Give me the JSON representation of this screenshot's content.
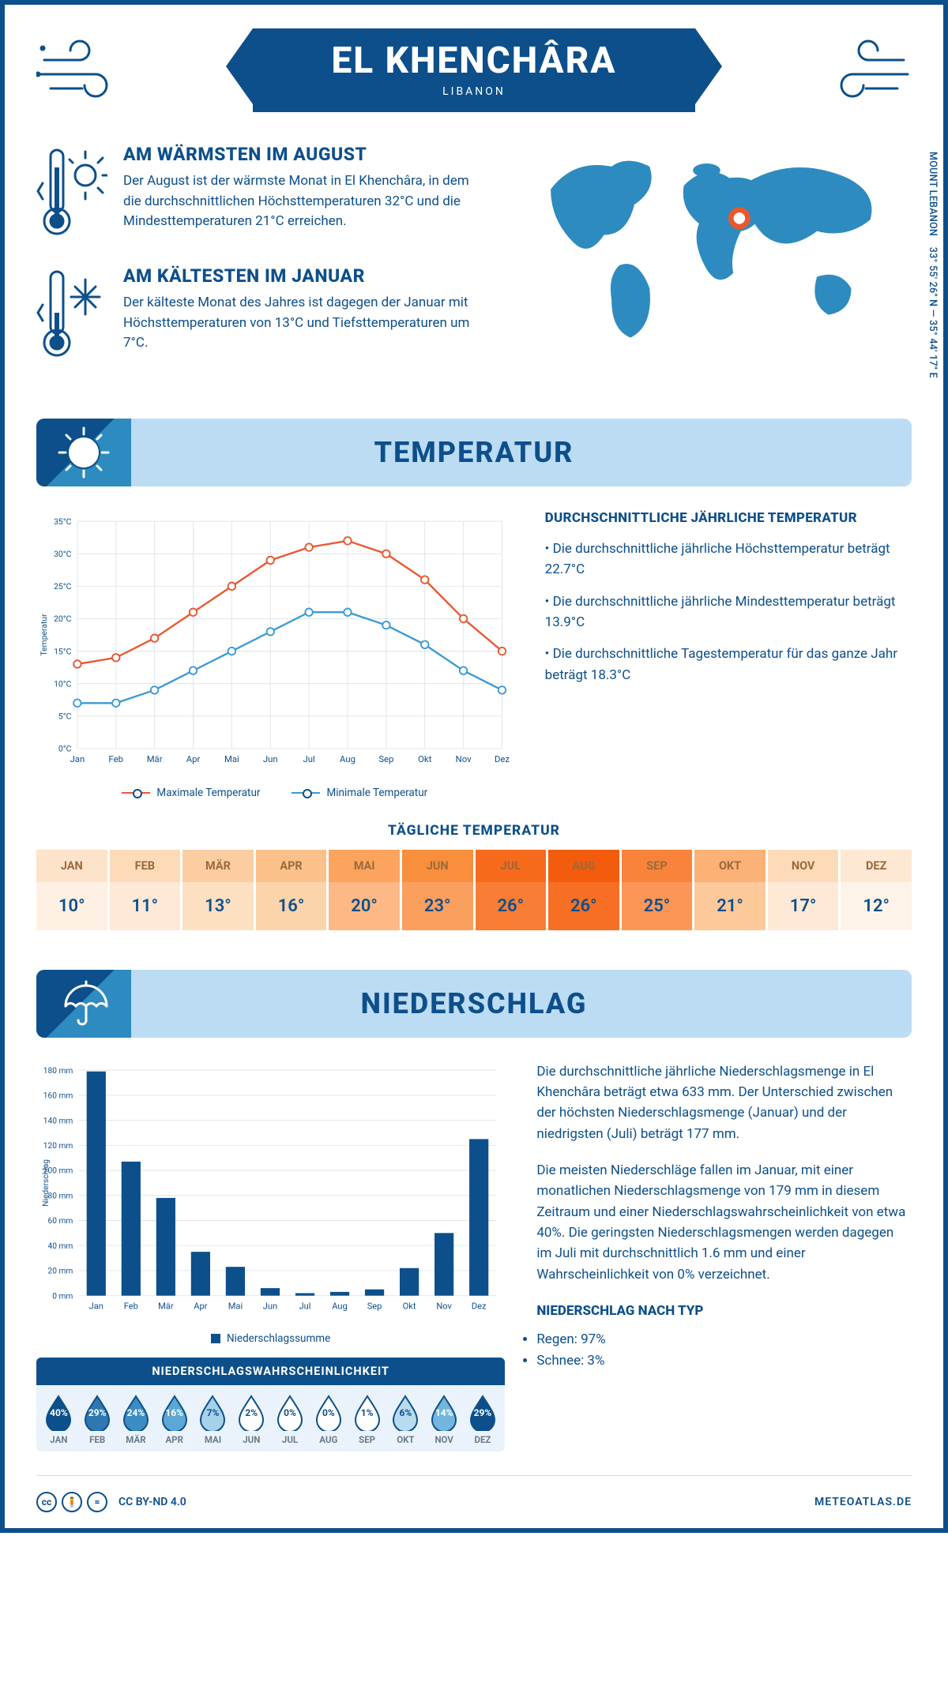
{
  "header": {
    "city": "EL KHENCHÂRA",
    "country": "LIBANON",
    "coords": "33° 55' 26'' N — 35° 44' 17'' E",
    "region": "MOUNT LEBANON"
  },
  "intro": {
    "warm": {
      "title": "AM WÄRMSTEN IM AUGUST",
      "text": "Der August ist der wärmste Monat in El Khenchâra, in dem die durchschnittlichen Höchsttemperaturen 32°C und die Mindesttemperaturen 21°C erreichen."
    },
    "cold": {
      "title": "AM KÄLTESTEN IM JANUAR",
      "text": "Der kälteste Monat des Jahres ist dagegen der Januar mit Höchsttemperaturen von 13°C und Tiefsttemperaturen um 7°C."
    }
  },
  "sections": {
    "temp": "TEMPERATUR",
    "precip": "NIEDERSCHLAG"
  },
  "temp_chart": {
    "type": "line",
    "months": [
      "Jan",
      "Feb",
      "Mär",
      "Apr",
      "Mai",
      "Jun",
      "Jul",
      "Aug",
      "Sep",
      "Okt",
      "Nov",
      "Dez"
    ],
    "max": [
      13,
      14,
      17,
      21,
      25,
      29,
      31,
      32,
      30,
      26,
      20,
      15
    ],
    "min": [
      7,
      7,
      9,
      12,
      15,
      18,
      21,
      21,
      19,
      16,
      12,
      9
    ],
    "ylim": [
      0,
      35
    ],
    "ytick_step": 5,
    "yunit": "°C",
    "ylabel": "Temperatur",
    "colors": {
      "max": "#e8582f",
      "min": "#3b9bd4",
      "grid": "#dfe5ea",
      "text": "#0d4f8b"
    },
    "line_width": 2.5,
    "marker": "circle",
    "marker_size": 5,
    "legend": {
      "max": "Maximale Temperatur",
      "min": "Minimale Temperatur"
    }
  },
  "temp_info": {
    "title": "DURCHSCHNITTLICHE JÄHRLICHE TEMPERATUR",
    "bullets": [
      "Die durchschnittliche jährliche Höchsttemperatur beträgt 22.7°C",
      "Die durchschnittliche jährliche Mindesttemperatur beträgt 13.9°C",
      "Die durchschnittliche Tagestemperatur für das ganze Jahr beträgt 18.3°C"
    ]
  },
  "daily_temp": {
    "title": "TÄGLICHE TEMPERATUR",
    "months": [
      "JAN",
      "FEB",
      "MÄR",
      "APR",
      "MAI",
      "JUN",
      "JUL",
      "AUG",
      "SEP",
      "OKT",
      "NOV",
      "DEZ"
    ],
    "values": [
      "10°",
      "11°",
      "13°",
      "16°",
      "20°",
      "23°",
      "26°",
      "26°",
      "25°",
      "21°",
      "17°",
      "12°"
    ],
    "header_bg": [
      "#fde3c9",
      "#fddbb9",
      "#fccda1",
      "#fcc08b",
      "#fca35e",
      "#f98e3c",
      "#f66a1b",
      "#f25c0c",
      "#f9833a",
      "#fcb177",
      "#fddbb9",
      "#fde8d3"
    ],
    "value_bg": [
      "#fef0e2",
      "#fde9d5",
      "#fde0c2",
      "#fcd4ab",
      "#fcb985",
      "#fb9f5e",
      "#f97d35",
      "#f66f24",
      "#fb9656",
      "#fdc99b",
      "#fde9d5",
      "#fef3e8"
    ],
    "header_text": "#9a6a3a"
  },
  "precip_chart": {
    "type": "bar",
    "months": [
      "Jan",
      "Feb",
      "Mär",
      "Apr",
      "Mai",
      "Jun",
      "Jul",
      "Aug",
      "Sep",
      "Okt",
      "Nov",
      "Dez"
    ],
    "values": [
      179,
      107,
      78,
      35,
      23,
      6,
      2,
      3,
      5,
      22,
      50,
      125
    ],
    "ylim": [
      0,
      180
    ],
    "ytick_step": 20,
    "yunit": " mm",
    "ylabel": "Niederschlag",
    "bar_color": "#0d4f8b",
    "grid_color": "#dfe5ea",
    "bar_width": 0.55,
    "legend": "Niederschlagssumme"
  },
  "precip_text": {
    "p1": "Die durchschnittliche jährliche Niederschlagsmenge in El Khenchâra beträgt etwa 633 mm. Der Unterschied zwischen der höchsten Niederschlagsmenge (Januar) und der niedrigsten (Juli) beträgt 177 mm.",
    "p2": "Die meisten Niederschläge fallen im Januar, mit einer monatlichen Niederschlagsmenge von 179 mm in diesem Zeitraum und einer Niederschlagswahrscheinlichkeit von etwa 40%. Die geringsten Niederschlagsmengen werden dagegen im Juli mit durchschnittlich 1.6 mm und einer Wahrscheinlichkeit von 0% verzeichnet.",
    "type_title": "NIEDERSCHLAG NACH TYP",
    "type_items": [
      "Regen: 97%",
      "Schnee: 3%"
    ]
  },
  "prob": {
    "title": "NIEDERSCHLAGSWAHRSCHEINLICHKEIT",
    "months": [
      "JAN",
      "FEB",
      "MÄR",
      "APR",
      "MAI",
      "JUN",
      "JUL",
      "AUG",
      "SEP",
      "OKT",
      "NOV",
      "DEZ"
    ],
    "values": [
      "40%",
      "29%",
      "24%",
      "16%",
      "7%",
      "2%",
      "0%",
      "0%",
      "1%",
      "6%",
      "14%",
      "29%"
    ],
    "fill": [
      "#0d4f8b",
      "#2e77b0",
      "#3b8cc4",
      "#5ba7d6",
      "#a6d1ea",
      "#fff",
      "#fff",
      "#fff",
      "#fff",
      "#b8dbef",
      "#72b6de",
      "#0d4f8b"
    ],
    "text": [
      "#fff",
      "#fff",
      "#fff",
      "#fff",
      "#0d4f8b",
      "#0d4f8b",
      "#0d4f8b",
      "#0d4f8b",
      "#0d4f8b",
      "#0d4f8b",
      "#fff",
      "#fff"
    ]
  },
  "footer": {
    "license": "CC BY-ND 4.0",
    "site": "METEOATLAS.DE"
  },
  "palette": {
    "primary": "#0d4f8b",
    "light_blue": "#bcdcf4",
    "world": "#2e8bc0",
    "orange": "#e8582f"
  }
}
